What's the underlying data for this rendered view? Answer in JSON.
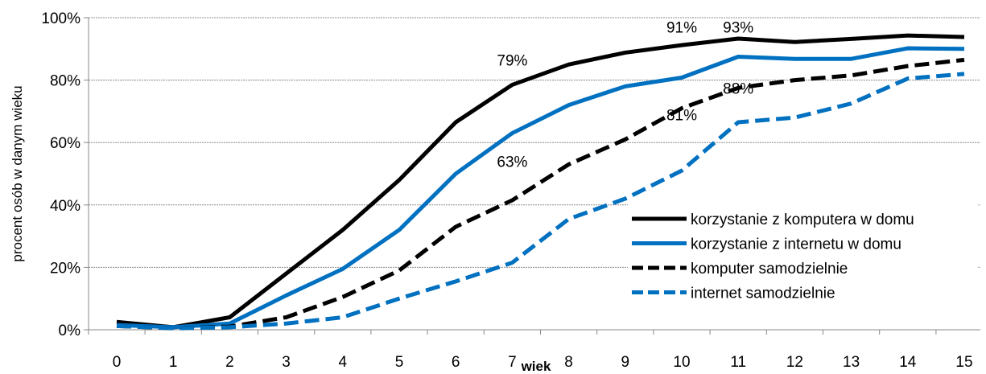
{
  "chart_data": {
    "type": "line",
    "xlabel": "wiek",
    "ylabel": "procent osób w danym wieku",
    "x": [
      0,
      1,
      2,
      3,
      4,
      5,
      6,
      7,
      8,
      9,
      10,
      11,
      12,
      13,
      14,
      15
    ],
    "x_ticks": [
      "0",
      "1",
      "2",
      "3",
      "4",
      "5",
      "6",
      "7",
      "8",
      "9",
      "10",
      "11",
      "12",
      "13",
      "14",
      "15"
    ],
    "ylim": [
      0,
      100
    ],
    "y_ticks": [
      "0%",
      "20%",
      "40%",
      "60%",
      "80%",
      "100%"
    ],
    "grid": true,
    "legend_position": "bottom-right",
    "series": [
      {
        "name": "korzystanie z komputera w domu",
        "color": "#000000",
        "dash": "solid",
        "values": [
          2.5,
          0.8,
          4,
          18,
          32,
          48,
          66.5,
          78.5,
          85,
          88.8,
          91.2,
          93.3,
          92.2,
          93.2,
          94.3,
          93.8
        ]
      },
      {
        "name": "korzystanie z internetu w domu",
        "color": "#0070C0",
        "dash": "solid",
        "values": [
          1.5,
          0.8,
          2,
          11,
          19.5,
          32,
          50,
          63,
          72,
          78,
          80.8,
          87.5,
          86.8,
          86.8,
          90.2,
          90
        ]
      },
      {
        "name": "komputer samodzielnie",
        "color": "#000000",
        "dash": "dashed",
        "values": [
          1.2,
          0.5,
          1,
          4,
          10.5,
          19,
          33,
          41.5,
          53,
          61,
          71,
          77.5,
          80,
          81.5,
          84.5,
          86.5
        ]
      },
      {
        "name": "internet samodzielnie",
        "color": "#0070C0",
        "dash": "dashed",
        "values": [
          1.2,
          0.5,
          0.8,
          2,
          4,
          10,
          15.5,
          21.5,
          35.5,
          42,
          51,
          66.5,
          68,
          72.5,
          80.5,
          82
        ]
      }
    ],
    "annotations": [
      {
        "text": "79%",
        "x": 7,
        "y": 86.5
      },
      {
        "text": "63%",
        "x": 7,
        "y": 54
      },
      {
        "text": "91%",
        "x": 10,
        "y": 97
      },
      {
        "text": "93%",
        "x": 11,
        "y": 97
      },
      {
        "text": "88%",
        "x": 11,
        "y": 77.5
      },
      {
        "text": "81%",
        "x": 10,
        "y": 69
      }
    ]
  }
}
